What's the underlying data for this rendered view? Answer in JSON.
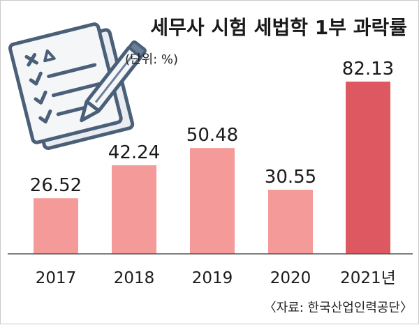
{
  "chart_data": {
    "type": "bar",
    "title": "세무사 시험 세법학 1부 과락률",
    "unit_label": "(단위: %)",
    "categories": [
      "2017",
      "2018",
      "2019",
      "2020",
      "2021년"
    ],
    "values": [
      26.52,
      42.24,
      50.48,
      30.55,
      82.13
    ],
    "value_labels": [
      "26.52",
      "42.24",
      "50.48",
      "30.55",
      "82.13"
    ],
    "ylim": [
      0,
      82.13
    ],
    "grid": false,
    "bar_colors": [
      "#f49a98",
      "#f49a98",
      "#f49a98",
      "#f49a98",
      "#de5861"
    ],
    "axis_color": "#555555",
    "source": "〈자료: 한국산업인력공단〉"
  },
  "illustration": {
    "icon": "checklist-pencil-icon",
    "colors": {
      "paper": "#f4f6f8",
      "outline": "#4a5f78",
      "accent": "#6b7f99"
    }
  }
}
